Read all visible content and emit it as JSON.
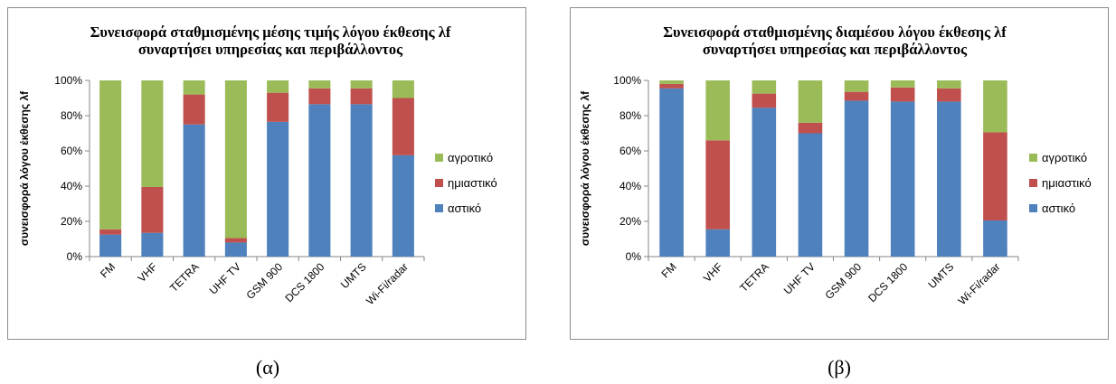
{
  "figure": {
    "caption_a": "(α)",
    "caption_b": "(β)"
  },
  "chart_data": [
    {
      "type": "bar",
      "stacked": true,
      "title_lines": [
        "Συνεισφορά σταθμισμένης μέσης τιμής λόγου έκθεσης λf",
        "συναρτήσει υπηρεσίας και περιβάλλοντος"
      ],
      "ylabel": "συνεισφορά λόγου έκθεσης λf",
      "xlabel": "",
      "ylim": [
        0,
        100
      ],
      "yticks": [
        "0%",
        "20%",
        "40%",
        "60%",
        "80%",
        "100%"
      ],
      "categories": [
        "FM",
        "VHF",
        "TETRA",
        "UHF TV",
        "GSM 900",
        "DCS 1800",
        "UMTS",
        "Wi-Fi/radar"
      ],
      "series": [
        {
          "name": "αστικό",
          "color": "#4f81bd",
          "values": [
            12.5,
            13.5,
            75,
            8,
            76.5,
            86.5,
            86.5,
            57.5
          ]
        },
        {
          "name": "ημιαστικό",
          "color": "#c0504d",
          "values": [
            3,
            26,
            17,
            2.5,
            16.5,
            9,
            9,
            32.5
          ]
        },
        {
          "name": "αγροτικό",
          "color": "#9bbb59",
          "values": [
            84.5,
            60.5,
            8,
            89.5,
            7,
            4.5,
            4.5,
            10
          ]
        }
      ],
      "legend": [
        "αγροτικό",
        "ημιαστικό",
        "αστικό"
      ],
      "legend_position": "right",
      "grid": false
    },
    {
      "type": "bar",
      "stacked": true,
      "title_lines": [
        "Συνεισφορά σταθμισμένης διαμέσου λόγου έκθεσης λf",
        "συναρτήσει υπηρεσίας και περιβάλλοντος"
      ],
      "ylabel": "συνεισφορά λόγου έκθεσης λf",
      "xlabel": "",
      "ylim": [
        0,
        100
      ],
      "yticks": [
        "0%",
        "20%",
        "40%",
        "60%",
        "80%",
        "100%"
      ],
      "categories": [
        "FM",
        "VHF",
        "TETRA",
        "UHF TV",
        "GSM 900",
        "DCS 1800",
        "UMTS",
        "Wi-Fi/radar"
      ],
      "series": [
        {
          "name": "αστικό",
          "color": "#4f81bd",
          "values": [
            95.5,
            15.5,
            84.5,
            70,
            88.5,
            88,
            88,
            20.5
          ]
        },
        {
          "name": "ημιαστικό",
          "color": "#c0504d",
          "values": [
            2.5,
            50.5,
            8,
            6,
            5,
            8,
            7.5,
            50
          ]
        },
        {
          "name": "αγροτικό",
          "color": "#9bbb59",
          "values": [
            2,
            34,
            7.5,
            24,
            6.5,
            4,
            4.5,
            29.5
          ]
        }
      ],
      "legend": [
        "αγροτικό",
        "ημιαστικό",
        "αστικό"
      ],
      "legend_position": "right",
      "grid": false
    }
  ]
}
